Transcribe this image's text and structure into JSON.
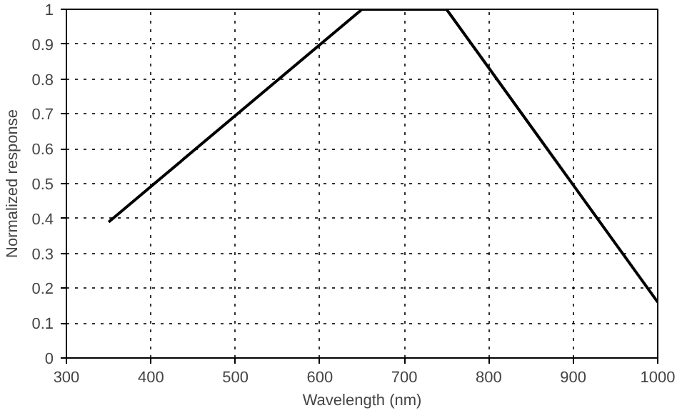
{
  "chart_data": {
    "type": "line",
    "xlabel": "Wavelength (nm)",
    "ylabel": "Normalized response",
    "x": [
      350,
      650,
      750,
      1000
    ],
    "values": [
      0.39,
      1.0,
      1.0,
      0.16
    ],
    "color": "#000000",
    "xlim": [
      300,
      1000
    ],
    "ylim": [
      0,
      1
    ],
    "xticks": [
      300,
      400,
      500,
      600,
      700,
      800,
      900,
      1000
    ],
    "yticks": [
      0,
      0.1,
      0.2,
      0.3,
      0.4,
      0.5,
      0.6,
      0.7,
      0.8,
      0.9,
      1
    ],
    "grid": true,
    "line_style": "solid",
    "marker": "none"
  }
}
